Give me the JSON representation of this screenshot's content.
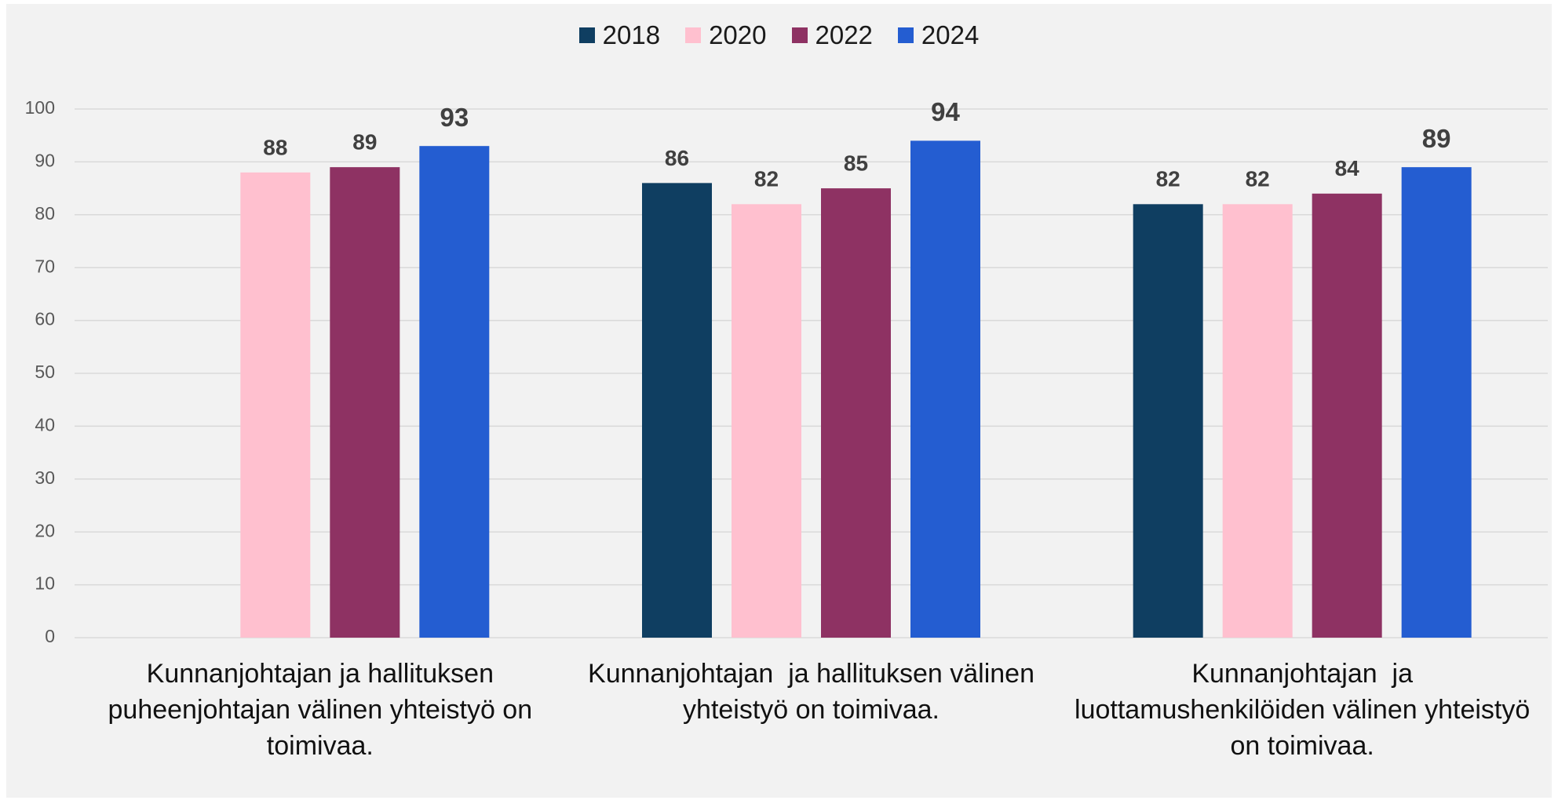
{
  "chart_data": {
    "type": "bar",
    "categories": [
      "Kunnanjohtajan ja hallituksen puheenjohtajan välinen yhteistyö on toimivaa.",
      "Kunnanjohtajan  ja hallituksen välinen yhteistyö on toimivaa.",
      "Kunnanjohtajan  ja luottamushenkilöiden välinen yhteistyö on toimivaa."
    ],
    "series": [
      {
        "name": "2018",
        "color": "#0f3e61",
        "values": [
          null,
          86,
          82
        ]
      },
      {
        "name": "2020",
        "color": "#ffc0cf",
        "values": [
          88,
          82,
          82
        ]
      },
      {
        "name": "2022",
        "color": "#8e3263",
        "values": [
          89,
          85,
          84
        ]
      },
      {
        "name": "2024",
        "color": "#245dd1",
        "values": [
          93,
          94,
          89
        ]
      }
    ],
    "ylim": [
      0,
      100
    ],
    "yticks": [
      0,
      10,
      20,
      30,
      40,
      50,
      60,
      70,
      80,
      90,
      100
    ],
    "grid": true,
    "legend": "top"
  }
}
